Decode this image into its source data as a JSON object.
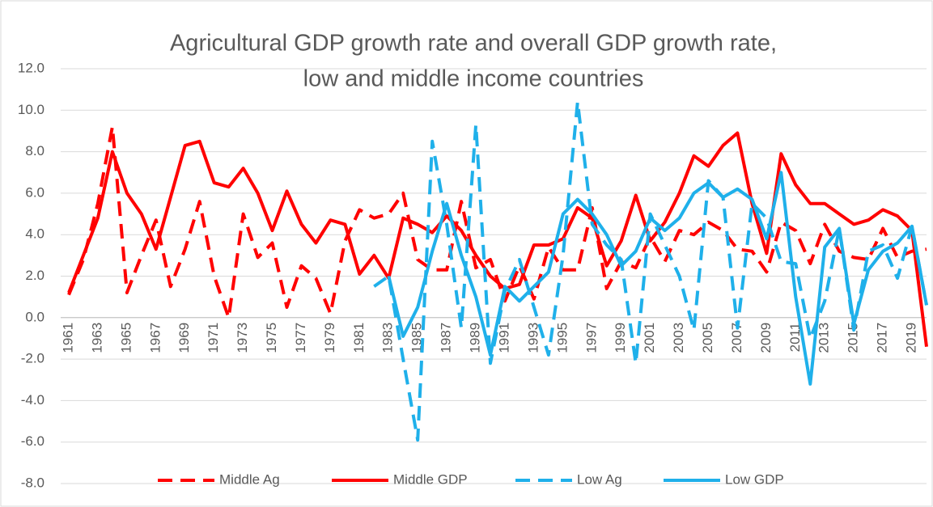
{
  "chart_data": {
    "type": "line",
    "title": [
      "Agricultural GDP growth rate and overall GDP growth rate,",
      "low and middle income countries"
    ],
    "categories": [
      "1961",
      null,
      "1963",
      null,
      "1965",
      null,
      "1967",
      null,
      "1969",
      null,
      "1971",
      null,
      "1973",
      null,
      "1975",
      null,
      "1977",
      null,
      "1979",
      null,
      "1981",
      null,
      "1983",
      null,
      "1985",
      null,
      "1987",
      null,
      "1989",
      null,
      "1991",
      null,
      "1993",
      null,
      "1995",
      null,
      "1997",
      null,
      "1999",
      null,
      "2001",
      null,
      "2003",
      null,
      "2005",
      null,
      "2007",
      null,
      "2009",
      null,
      "2011",
      null,
      "2013",
      null,
      "2015",
      null,
      "2017",
      null,
      "2019",
      null
    ],
    "series": [
      {
        "name": "Middle Ag",
        "color": "#ff0000",
        "dashed": true,
        "values": [
          1.1,
          2.8,
          5.5,
          9.2,
          1.2,
          3.0,
          4.7,
          1.5,
          3.3,
          5.6,
          2.0,
          0.0,
          5.0,
          2.9,
          3.6,
          0.5,
          2.5,
          1.9,
          0.2,
          3.7,
          5.2,
          4.8,
          5.0,
          6.0,
          2.8,
          2.3,
          2.3,
          5.6,
          2.4,
          2.8,
          0.8,
          2.5,
          0.9,
          3.4,
          2.3,
          2.3,
          5.3,
          1.4,
          2.7,
          2.4,
          3.9,
          2.7,
          4.2,
          4.0,
          4.6,
          4.2,
          3.3,
          3.2,
          2.2,
          4.6,
          4.2,
          2.6,
          4.5,
          3.2,
          2.9,
          2.8,
          4.3,
          2.9,
          3.2,
          3.3
        ]
      },
      {
        "name": "Middle GDP",
        "color": "#ff0000",
        "dashed": false,
        "values": [
          1.2,
          3.0,
          4.8,
          8.0,
          6.0,
          5.0,
          3.3,
          5.8,
          8.3,
          8.5,
          6.5,
          6.3,
          7.2,
          6.0,
          4.2,
          6.1,
          4.5,
          3.6,
          4.7,
          4.5,
          2.1,
          3.0,
          1.9,
          4.8,
          4.5,
          4.1,
          4.9,
          4.2,
          3.0,
          2.0,
          1.4,
          1.6,
          3.5,
          3.5,
          3.8,
          5.3,
          4.8,
          2.5,
          3.7,
          5.9,
          3.7,
          4.6,
          6.0,
          7.8,
          7.3,
          8.3,
          8.9,
          5.5,
          3.1,
          7.9,
          6.4,
          5.5,
          5.5,
          5.0,
          4.5,
          4.7,
          5.2,
          4.9,
          4.2,
          -1.4
        ]
      },
      {
        "name": "Low Ag",
        "color": "#1fb0ea",
        "dashed": true,
        "values": [
          null,
          null,
          null,
          null,
          null,
          null,
          null,
          null,
          null,
          null,
          null,
          null,
          null,
          null,
          null,
          null,
          null,
          null,
          null,
          null,
          null,
          1.5,
          2.0,
          -2.0,
          -5.9,
          8.5,
          4.5,
          -0.5,
          9.3,
          -2.2,
          1.3,
          2.8,
          0.5,
          -1.8,
          3.0,
          10.4,
          4.5,
          3.5,
          2.8,
          -2.2,
          5.0,
          3.5,
          2.0,
          -0.6,
          6.6,
          5.8,
          -0.5,
          5.5,
          4.8,
          2.7,
          2.6,
          -1.0,
          0.8,
          4.3,
          -0.6,
          3.2,
          3.5,
          1.9,
          4.4,
          0.6
        ]
      },
      {
        "name": "Low GDP",
        "color": "#1fb0ea",
        "dashed": false,
        "values": [
          null,
          null,
          null,
          null,
          null,
          null,
          null,
          null,
          null,
          null,
          null,
          null,
          null,
          null,
          null,
          null,
          null,
          null,
          null,
          null,
          null,
          null,
          2.0,
          -0.9,
          0.5,
          3.2,
          5.5,
          3.0,
          1.0,
          -1.8,
          1.5,
          0.8,
          1.5,
          2.2,
          5.0,
          5.7,
          5.0,
          4.0,
          2.5,
          3.2,
          4.8,
          4.2,
          4.8,
          6.0,
          6.5,
          5.8,
          6.2,
          5.7,
          3.8,
          7.0,
          1.0,
          -3.2,
          3.4,
          4.3,
          -0.3,
          2.3,
          3.2,
          3.6,
          4.4,
          0.6
        ]
      }
    ],
    "ylim": [
      -8,
      12
    ],
    "yticks": [
      {
        "value": -8,
        "label": "-8.0"
      },
      {
        "value": -6,
        "label": "-6.0"
      },
      {
        "value": -4,
        "label": "-4.0"
      },
      {
        "value": -2,
        "label": "-2.0"
      },
      {
        "value": 0,
        "label": "0.0"
      },
      {
        "value": 2,
        "label": "2.0"
      },
      {
        "value": 4,
        "label": "4.0"
      },
      {
        "value": 6,
        "label": "6.0"
      },
      {
        "value": 8,
        "label": "8.0"
      },
      {
        "value": 10,
        "label": "10.0"
      },
      {
        "value": 12,
        "label": "12.0"
      }
    ],
    "grid": true,
    "legend": "bottom"
  }
}
